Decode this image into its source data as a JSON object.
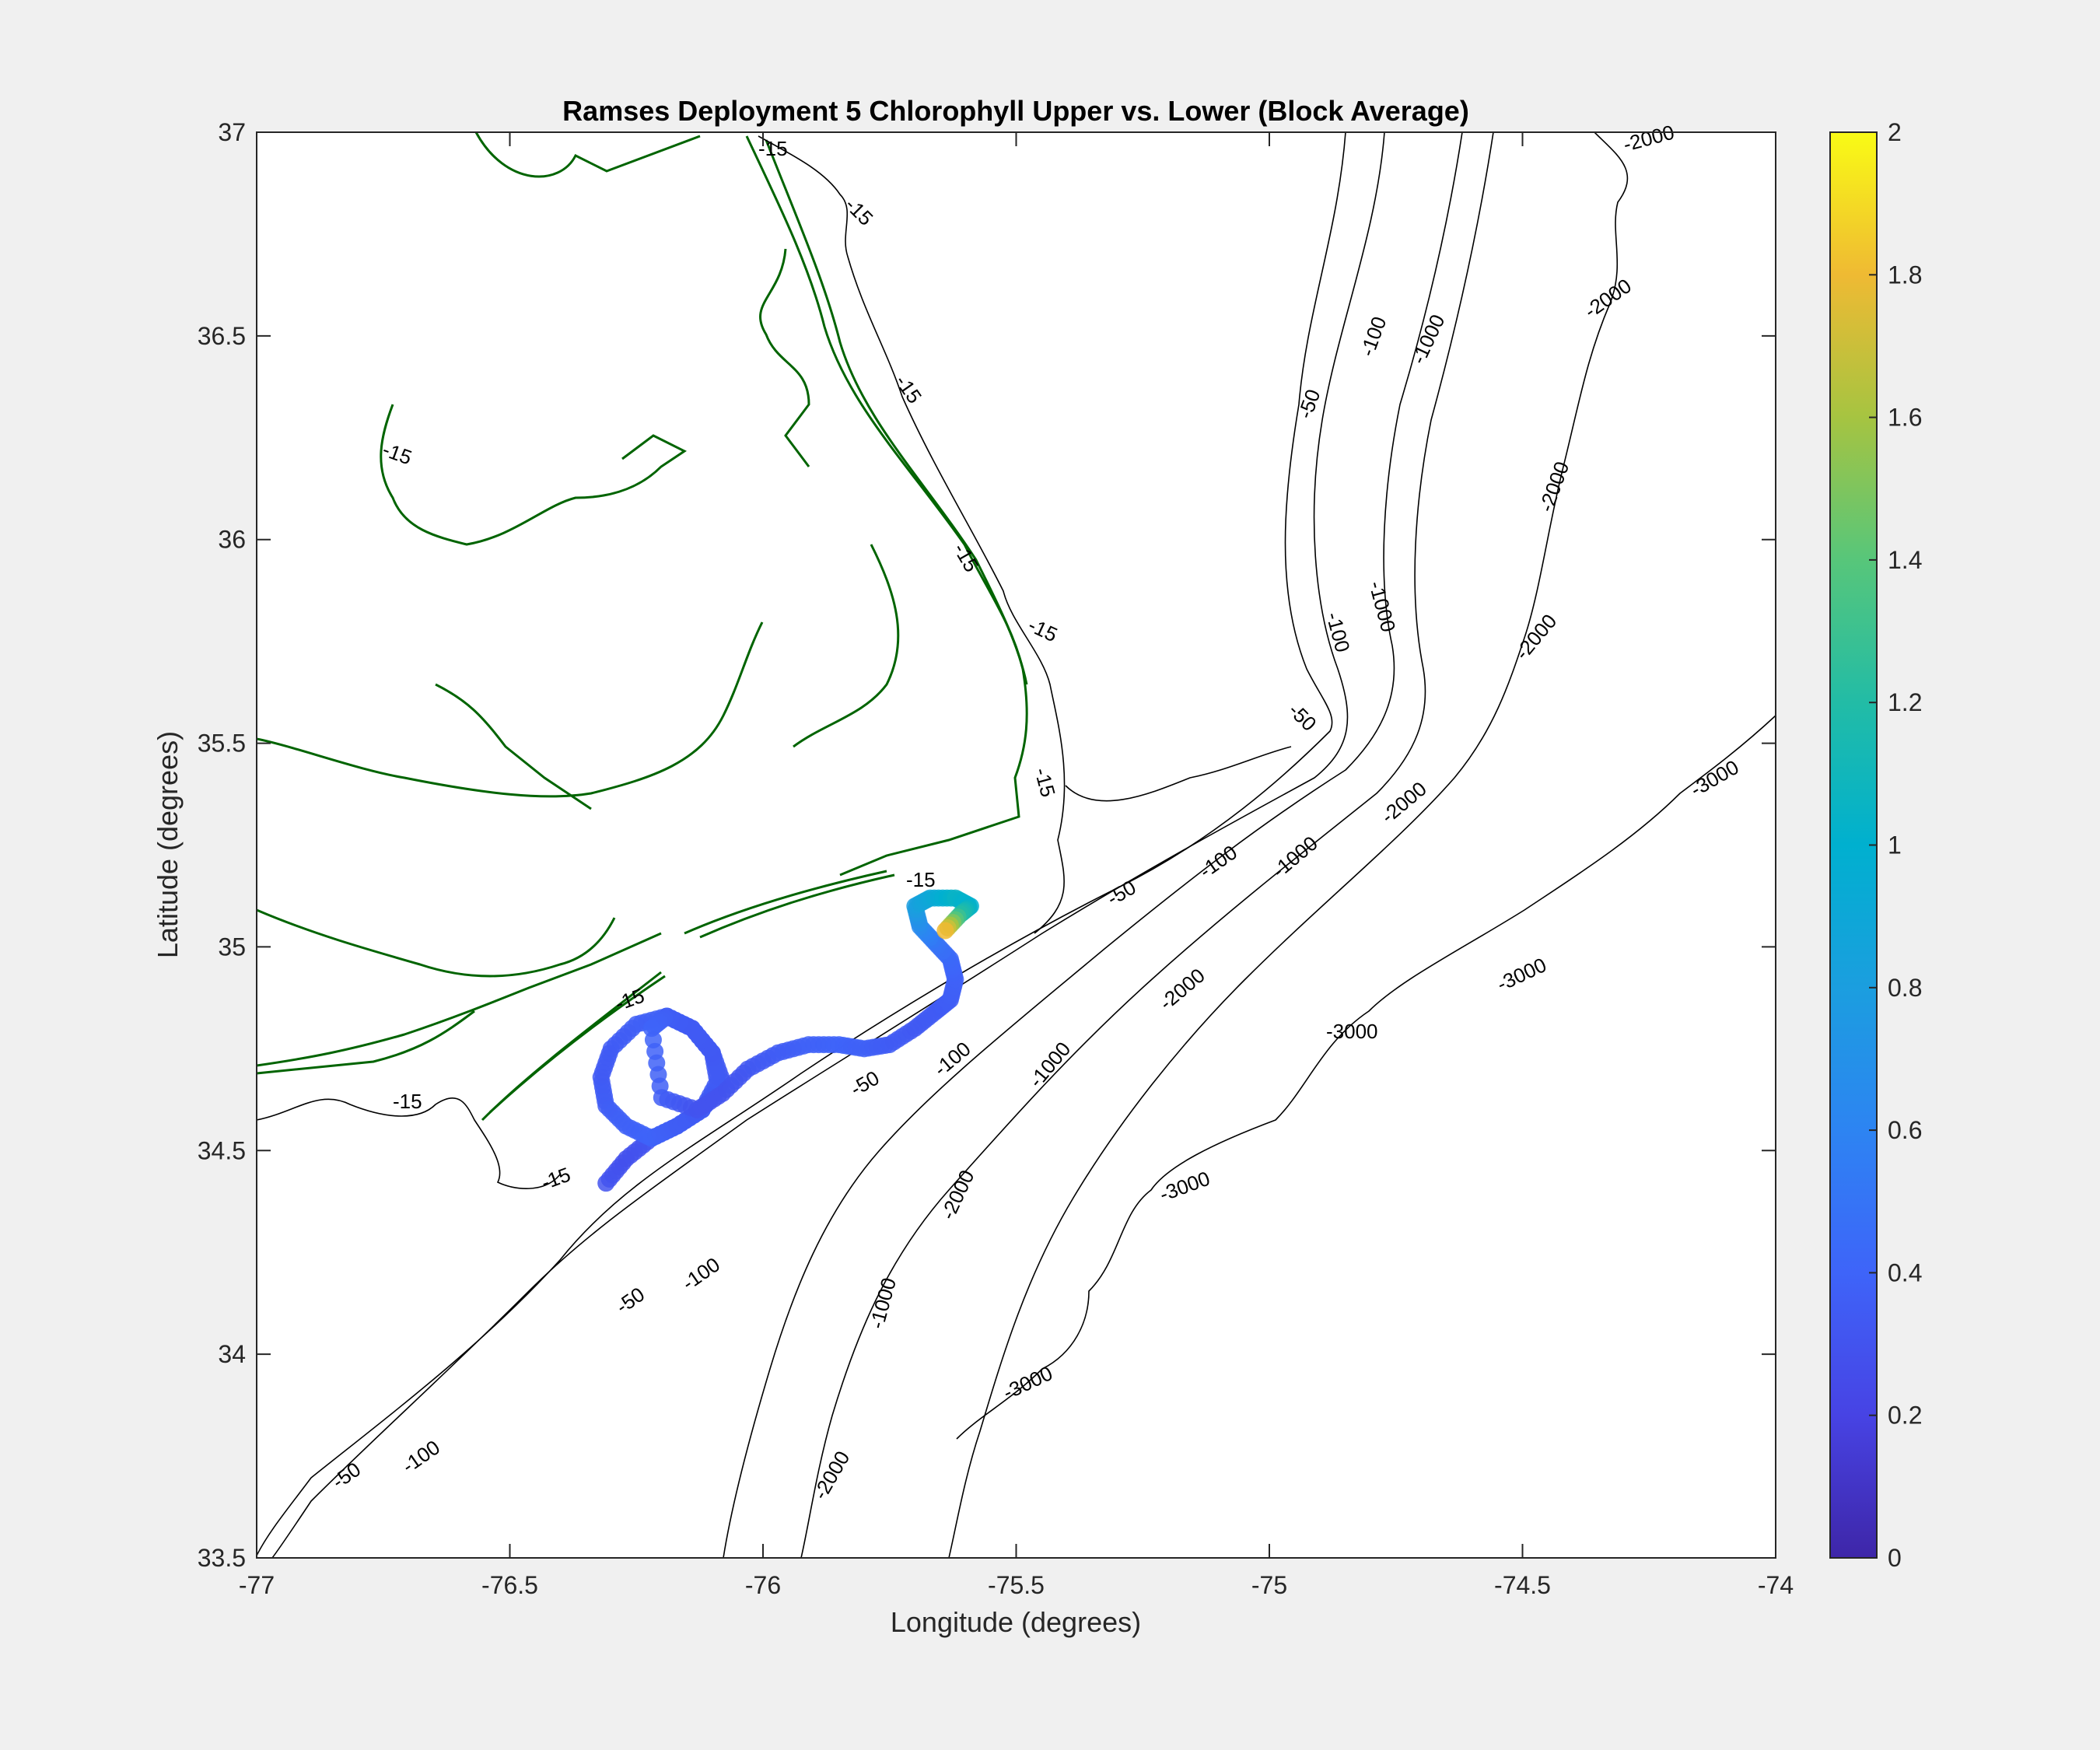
{
  "chart_data": {
    "type": "scatter",
    "title": "Ramses Deployment 5 Chlorophyll Upper vs. Lower (Block Average)",
    "xlabel": "Longitude (degrees)",
    "ylabel": "Latitude (degrees)",
    "xlim": [
      -77,
      -74
    ],
    "ylim": [
      33.5,
      37
    ],
    "xticks": [
      -77,
      -76.5,
      -76,
      -75.5,
      -75,
      -74.5,
      -74
    ],
    "xtick_labels": [
      "-77",
      "-76.5",
      "-76",
      "-75.5",
      "-75",
      "-74.5",
      "-74"
    ],
    "yticks": [
      33.5,
      34,
      34.5,
      35,
      35.5,
      36,
      36.5,
      37
    ],
    "ytick_labels": [
      "33.5",
      "34",
      "34.5",
      "35",
      "35.5",
      "36",
      "36.5",
      "37"
    ],
    "grid": false,
    "colorbar": {
      "colormap": "parula",
      "clim": [
        0,
        2
      ],
      "ticks": [
        0,
        0.2,
        0.4,
        0.6,
        0.8,
        1,
        1.2,
        1.4,
        1.6,
        1.8,
        2
      ],
      "tick_labels": [
        "0",
        "0.2",
        "0.4",
        "0.6",
        "0.8",
        "1",
        "1.2",
        "1.4",
        "1.6",
        "1.8",
        "2"
      ]
    },
    "coastline_color": "#006400",
    "bathymetry_color": "#000000",
    "glider_track": {
      "lon": [
        -76.31,
        -76.27,
        -76.22,
        -76.17,
        -76.12,
        -76.08,
        -76.1,
        -76.14,
        -76.19,
        -76.25,
        -76.3,
        -76.32,
        -76.31,
        -76.27,
        -76.22,
        -76.17,
        -76.12,
        -76.09,
        -76.1,
        -76.14,
        -76.19,
        -76.22,
        -76.2,
        -76.13,
        -76.08,
        -76.03,
        -75.97,
        -75.91,
        -75.85,
        -75.8,
        -75.75,
        -75.7,
        -75.66,
        -75.63,
        -75.62,
        -75.63,
        -75.66,
        -75.69,
        -75.7,
        -75.67,
        -75.62,
        -75.59,
        -75.61,
        -75.64
      ],
      "lat": [
        34.42,
        34.48,
        34.53,
        34.56,
        34.6,
        34.67,
        34.74,
        34.8,
        34.83,
        34.81,
        34.75,
        34.68,
        34.61,
        34.56,
        34.53,
        34.56,
        34.6,
        34.67,
        34.74,
        34.8,
        34.83,
        34.8,
        34.63,
        34.6,
        34.64,
        34.7,
        34.74,
        34.76,
        34.76,
        34.75,
        34.76,
        34.8,
        34.84,
        34.87,
        34.92,
        34.97,
        35.01,
        35.05,
        35.1,
        35.12,
        35.12,
        35.1,
        35.08,
        35.04
      ],
      "chl": [
        0.3,
        0.28,
        0.3,
        0.32,
        0.35,
        0.33,
        0.34,
        0.36,
        0.38,
        0.37,
        0.35,
        0.34,
        0.36,
        0.38,
        0.4,
        0.36,
        0.34,
        0.35,
        0.33,
        0.34,
        0.36,
        0.4,
        0.36,
        0.3,
        0.3,
        0.32,
        0.35,
        0.38,
        0.4,
        0.38,
        0.35,
        0.33,
        0.34,
        0.36,
        0.38,
        0.42,
        0.5,
        0.65,
        0.8,
        0.9,
        1.05,
        1.0,
        1.2,
        1.8
      ]
    },
    "contour_labels": [
      "-15",
      "-50",
      "-100",
      "-1000",
      "-2000",
      "-3000"
    ]
  }
}
